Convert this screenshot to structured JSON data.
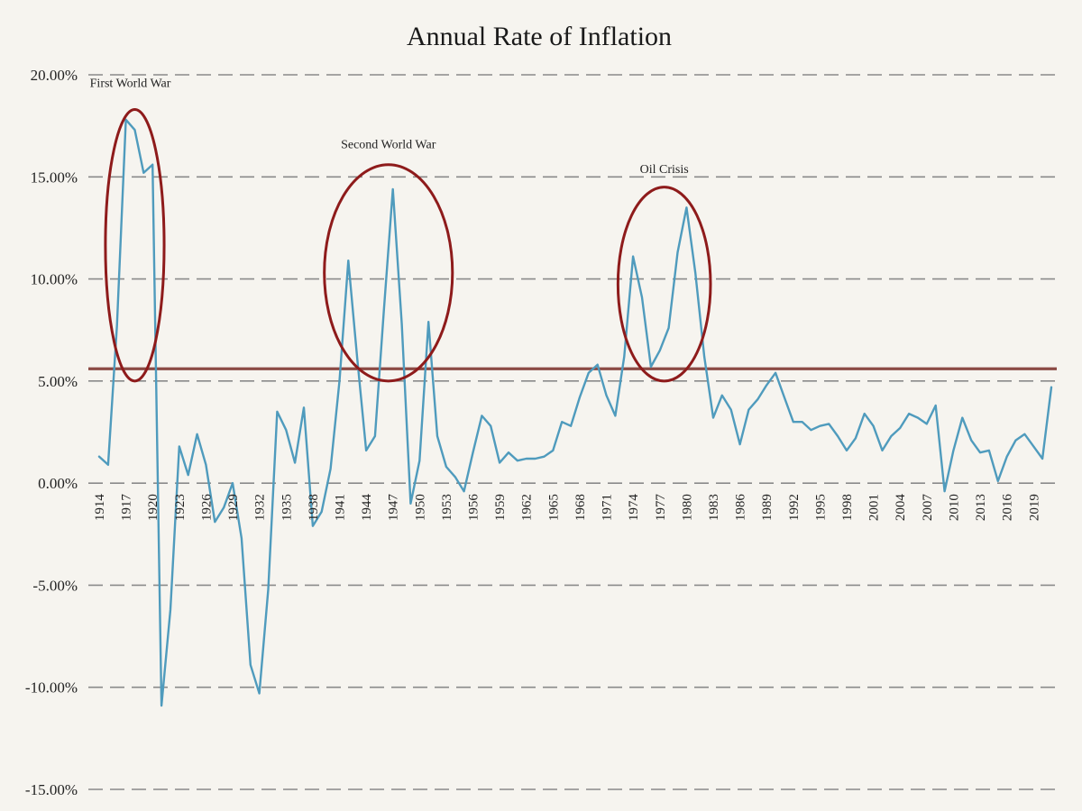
{
  "chart_data": {
    "type": "line",
    "title": "Annual Rate of Inflation",
    "xlabel": "",
    "ylabel": "",
    "ylim": [
      -15,
      20
    ],
    "xlim": [
      1914,
      2021
    ],
    "grid": true,
    "y_ticks": [
      "-15.00%",
      "-10.00%",
      "-5.00%",
      "0.00%",
      "5.00%",
      "10.00%",
      "15.00%",
      "20.00%"
    ],
    "y_tick_values": [
      -15,
      -10,
      -5,
      0,
      5,
      10,
      15,
      20
    ],
    "x_ticks": [
      "1914",
      "1917",
      "1920",
      "1923",
      "1926",
      "1929",
      "1932",
      "1935",
      "1938",
      "1941",
      "1944",
      "1947",
      "1950",
      "1953",
      "1956",
      "1959",
      "1962",
      "1965",
      "1968",
      "1971",
      "1974",
      "1977",
      "1980",
      "1983",
      "1986",
      "1989",
      "1992",
      "1995",
      "1998",
      "2001",
      "2004",
      "2007",
      "2010",
      "2013",
      "2016",
      "2019"
    ],
    "series": [
      {
        "color": "#4f9bbd",
        "x": [
          1914,
          1915,
          1916,
          1917,
          1918,
          1919,
          1920,
          1921,
          1922,
          1923,
          1924,
          1925,
          1926,
          1927,
          1928,
          1929,
          1930,
          1931,
          1932,
          1933,
          1934,
          1935,
          1936,
          1937,
          1938,
          1939,
          1940,
          1941,
          1942,
          1943,
          1944,
          1945,
          1946,
          1947,
          1948,
          1949,
          1950,
          1951,
          1952,
          1953,
          1954,
          1955,
          1956,
          1957,
          1958,
          1959,
          1960,
          1961,
          1962,
          1963,
          1964,
          1965,
          1966,
          1967,
          1968,
          1969,
          1970,
          1971,
          1972,
          1973,
          1974,
          1975,
          1976,
          1977,
          1978,
          1979,
          1980,
          1981,
          1982,
          1983,
          1984,
          1985,
          1986,
          1987,
          1988,
          1989,
          1990,
          1991,
          1992,
          1993,
          1994,
          1995,
          1996,
          1997,
          1998,
          1999,
          2000,
          2001,
          2002,
          2003,
          2004,
          2005,
          2006,
          2007,
          2008,
          2009,
          2010,
          2011,
          2012,
          2013,
          2014,
          2015,
          2016,
          2017,
          2018,
          2019,
          2020,
          2021
        ],
        "values": [
          1.3,
          0.9,
          7.7,
          17.8,
          17.3,
          15.2,
          15.6,
          -10.9,
          -6.2,
          1.8,
          0.4,
          2.4,
          0.9,
          -1.9,
          -1.2,
          0.0,
          -2.7,
          -8.9,
          -10.3,
          -5.2,
          3.5,
          2.6,
          1.0,
          3.7,
          -2.1,
          -1.4,
          0.7,
          5.0,
          10.9,
          6.1,
          1.6,
          2.3,
          8.5,
          14.4,
          7.8,
          -1.0,
          1.1,
          7.9,
          2.3,
          0.8,
          0.3,
          -0.4,
          1.5,
          3.3,
          2.8,
          1.0,
          1.5,
          1.1,
          1.2,
          1.2,
          1.3,
          1.6,
          3.0,
          2.8,
          4.2,
          5.4,
          5.8,
          4.3,
          3.3,
          6.2,
          11.1,
          9.1,
          5.7,
          6.5,
          7.6,
          11.3,
          13.5,
          10.3,
          6.2,
          3.2,
          4.3,
          3.6,
          1.9,
          3.6,
          4.1,
          4.8,
          5.4,
          4.2,
          3.0,
          3.0,
          2.6,
          2.8,
          2.9,
          2.3,
          1.6,
          2.2,
          3.4,
          2.8,
          1.6,
          2.3,
          2.7,
          3.4,
          3.2,
          2.9,
          3.8,
          -0.4,
          1.6,
          3.2,
          2.1,
          1.5,
          1.6,
          0.1,
          1.3,
          2.1,
          2.4,
          1.8,
          1.2,
          4.7
        ]
      }
    ],
    "reference_line": {
      "value": 5.6,
      "color": "#8b4a44"
    },
    "annotations": [
      {
        "text": "First World War",
        "x": 1917.5,
        "y": 19.4
      },
      {
        "text": "Second World War",
        "x": 1946.5,
        "y": 16.4
      },
      {
        "text": "Oil Crisis",
        "x": 1977.5,
        "y": 15.2
      }
    ],
    "highlight_circles": [
      {
        "name": "first-world-war-circle",
        "color": "#8e1b1b",
        "x_range": [
          1914.7,
          1921.3
        ],
        "y_range": [
          5.0,
          18.3
        ]
      },
      {
        "name": "second-world-war-circle",
        "color": "#8e1b1b",
        "x_range": [
          1939.3,
          1953.7
        ],
        "y_range": [
          5.0,
          15.6
        ]
      },
      {
        "name": "oil-crisis-circle",
        "color": "#8e1b1b",
        "x_range": [
          1972.3,
          1982.7
        ],
        "y_range": [
          5.0,
          14.5
        ]
      }
    ]
  }
}
